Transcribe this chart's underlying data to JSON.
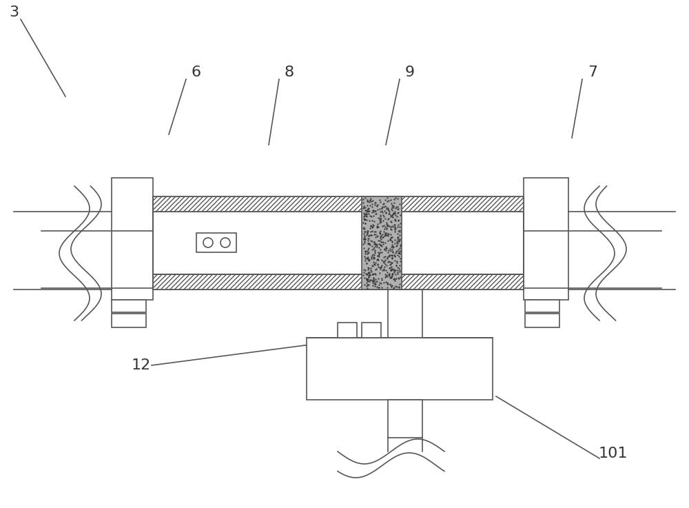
{
  "bg_color": "#ffffff",
  "line_color": "#555555",
  "label_color": "#333333",
  "fig_width": 10.0,
  "fig_height": 7.37,
  "label_fontsize": 16
}
